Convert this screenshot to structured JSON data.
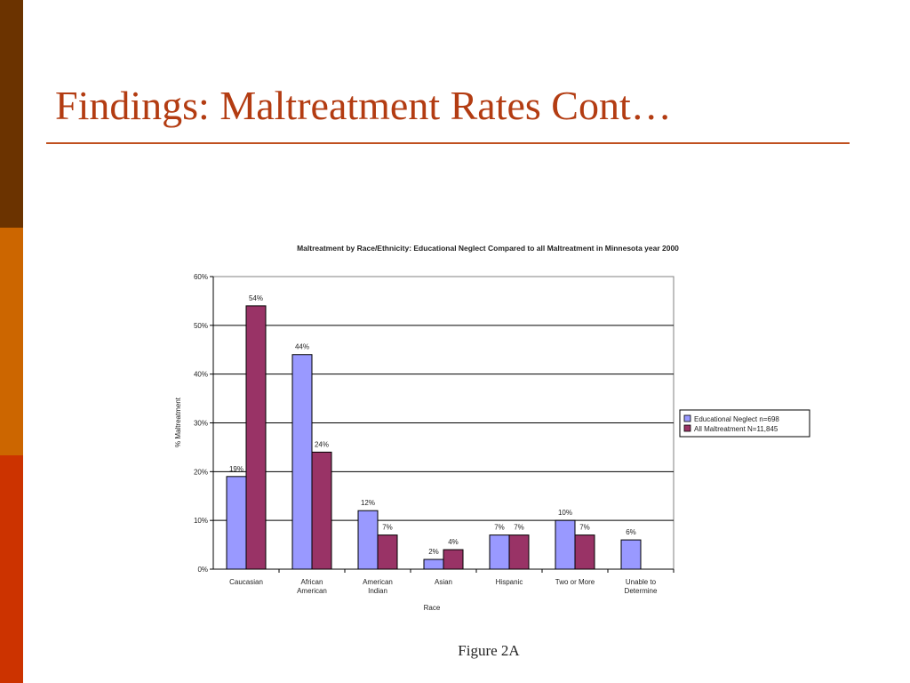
{
  "slide": {
    "title": "Findings: Maltreatment Rates Cont…",
    "caption": "Figure 2A"
  },
  "colors": {
    "stripe_top": "#6b3300",
    "stripe_middle": "#cc6600",
    "stripe_bottom": "#cc3300",
    "title": "#b33c12",
    "rule": "#c0501f"
  },
  "chart_data": {
    "type": "bar",
    "title": "Maltreatment by Race/Ethnicity: Educational Neglect Compared to all Maltreatment in Minnesota year 2000",
    "xlabel": "Race",
    "ylabel": "% Maltreatment",
    "ylim": [
      0,
      60
    ],
    "yticks": [
      "0%",
      "10%",
      "20%",
      "30%",
      "40%",
      "50%",
      "60%"
    ],
    "grid": true,
    "legend": "right",
    "categories": [
      [
        "Caucasian"
      ],
      [
        "African",
        "American"
      ],
      [
        "American",
        "Indian"
      ],
      [
        "Asian"
      ],
      [
        "Hispanic"
      ],
      [
        "Two or More"
      ],
      [
        "Unable to",
        "Determine"
      ]
    ],
    "series": [
      {
        "name": "Educational Neglect n=698",
        "color": "#9999ff",
        "values": [
          19,
          44,
          12,
          2,
          7,
          10,
          6
        ],
        "labels": [
          "19%",
          "44%",
          "12%",
          "2%",
          "7%",
          "10%",
          "6%"
        ]
      },
      {
        "name": "All Maltreatment N=11,845",
        "color": "#993366",
        "values": [
          54,
          24,
          7,
          4,
          7,
          7,
          null
        ],
        "labels": [
          "54%",
          "24%",
          "7%",
          "4%",
          "7%",
          "7%",
          null
        ]
      }
    ]
  }
}
